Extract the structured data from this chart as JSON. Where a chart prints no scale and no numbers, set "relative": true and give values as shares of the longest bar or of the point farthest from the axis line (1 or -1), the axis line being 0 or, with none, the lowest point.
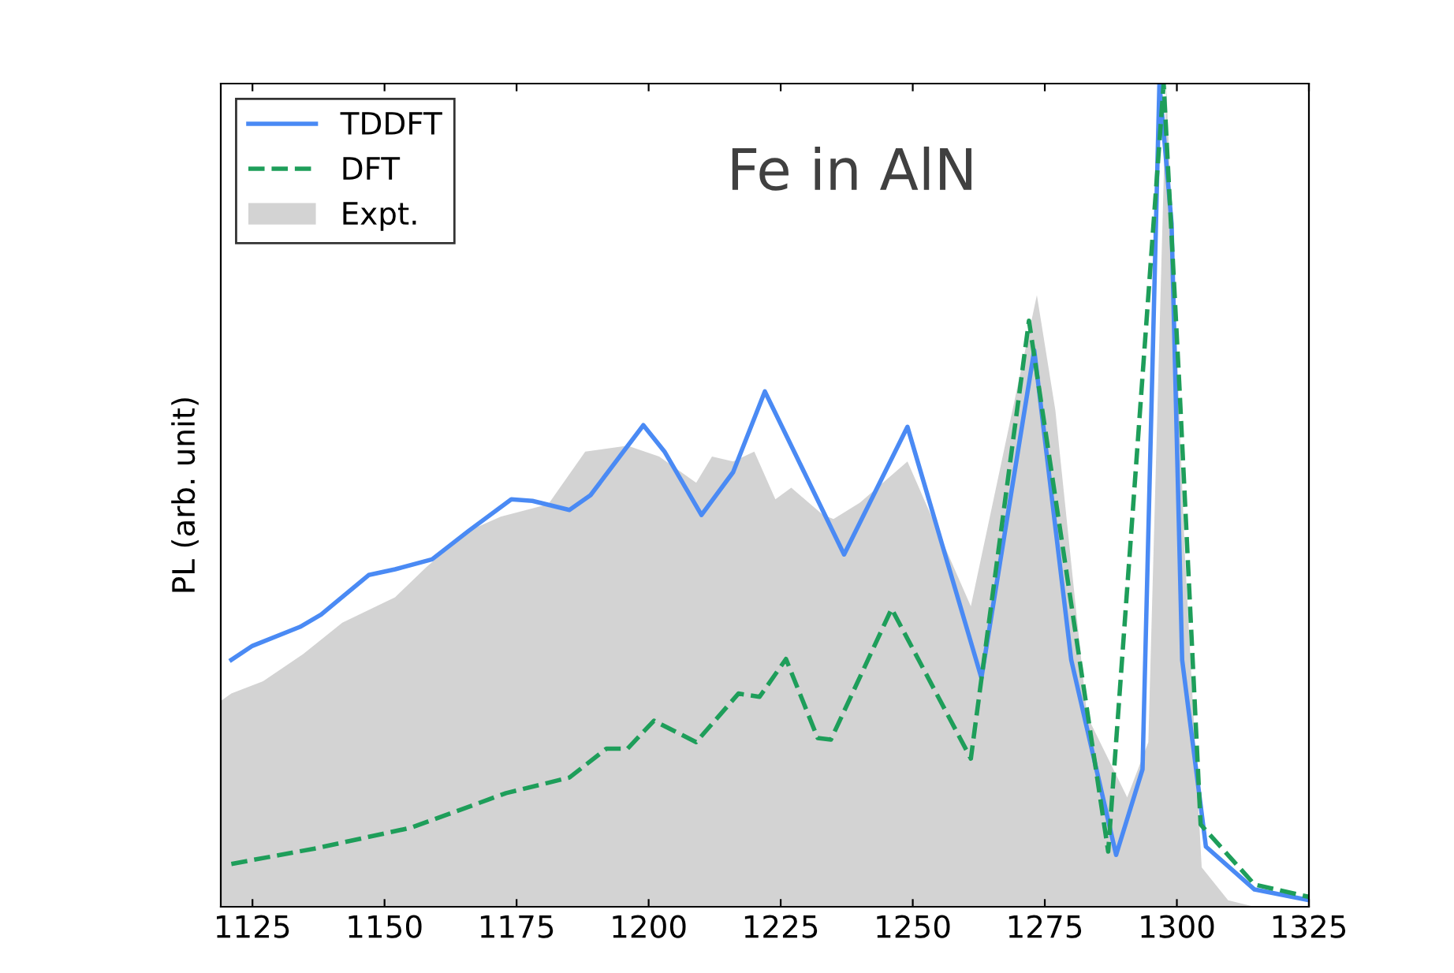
{
  "chart_data": {
    "type": "line",
    "relative": true,
    "ylabel": "PL (arb. unit)",
    "annotations": [
      "Fe in AlN"
    ],
    "xlim": [
      1119,
      1325
    ],
    "xticks": [
      1125,
      1150,
      1175,
      1200,
      1225,
      1250,
      1275,
      1300,
      1325
    ],
    "legend": "top left",
    "grid": false,
    "series": [
      {
        "name": "TDDFT",
        "color": "#4a8af4",
        "line_style": "solid",
        "x": [
          1121,
          1125,
          1134,
          1138,
          1147,
          1152,
          1159,
          1166,
          1174,
          1178,
          1185,
          1189,
          1199,
          1203,
          1210,
          1216,
          1222,
          1228,
          1237,
          1249,
          1263,
          1273,
          1280,
          1288.5,
          1293.5,
          1296.7,
          1299,
          1301,
          1305.5,
          1314.7,
          1325
        ],
        "values": [
          0.3,
          0.317,
          0.34,
          0.355,
          0.403,
          0.41,
          0.422,
          0.457,
          0.495,
          0.493,
          0.482,
          0.5,
          0.585,
          0.553,
          0.476,
          0.528,
          0.626,
          0.547,
          0.428,
          0.583,
          0.278,
          0.676,
          0.3,
          0.063,
          0.167,
          1.0,
          0.83,
          0.3,
          0.073,
          0.021,
          0.008
        ]
      },
      {
        "name": "DFT",
        "color": "#1e9e5a",
        "line_style": "dashed",
        "x": [
          1121,
          1137,
          1155,
          1173,
          1185,
          1192,
          1196,
          1201,
          1209,
          1217,
          1221,
          1226,
          1232,
          1234.5,
          1246,
          1261,
          1272,
          1287,
          1297.5,
          1300.5,
          1304.5,
          1314.7,
          1325
        ],
        "values": [
          0.052,
          0.071,
          0.096,
          0.138,
          0.157,
          0.192,
          0.192,
          0.226,
          0.2,
          0.259,
          0.255,
          0.301,
          0.205,
          0.203,
          0.362,
          0.18,
          0.712,
          0.067,
          1.0,
          0.63,
          0.1,
          0.027,
          0.012
        ]
      },
      {
        "name": "Expt.",
        "type": "area",
        "color": "#d3d3d3",
        "x": [
          1119,
          1121,
          1127,
          1134.6,
          1142,
          1152,
          1158,
          1166,
          1172,
          1181,
          1188,
          1196,
          1202,
          1209,
          1212,
          1216,
          1220,
          1224,
          1227,
          1233,
          1235,
          1240,
          1249,
          1261,
          1273.5,
          1277,
          1283,
          1290.6,
          1294.6,
          1298,
          1301.5,
          1304.7,
          1309.7,
          1314.7,
          1325
        ],
        "values": [
          0.25,
          0.259,
          0.274,
          0.307,
          0.345,
          0.376,
          0.413,
          0.457,
          0.474,
          0.489,
          0.553,
          0.56,
          0.547,
          0.515,
          0.547,
          0.541,
          0.553,
          0.495,
          0.509,
          0.476,
          0.471,
          0.491,
          0.541,
          0.365,
          0.743,
          0.603,
          0.232,
          0.133,
          0.2,
          1.0,
          0.43,
          0.048,
          0.008,
          0,
          0
        ]
      }
    ]
  }
}
